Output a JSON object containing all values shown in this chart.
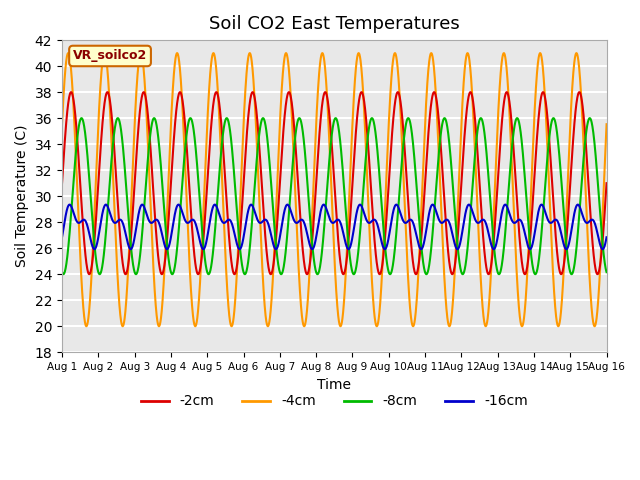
{
  "title": "Soil CO2 East Temperatures",
  "xlabel": "Time",
  "ylabel": "Soil Temperature (C)",
  "ylim": [
    18,
    42
  ],
  "yticks": [
    18,
    20,
    22,
    24,
    26,
    28,
    30,
    32,
    34,
    36,
    38,
    40,
    42
  ],
  "start_day": 1,
  "end_day": 16,
  "days": 15,
  "colors": [
    "#dd0000",
    "#ff9900",
    "#00bb00",
    "#0000cc"
  ],
  "labels": [
    "-2cm",
    "-4cm",
    "-8cm",
    "-16cm"
  ],
  "bg_color": "#e8e8e8",
  "fig_bg": "#ffffff",
  "grid_color": "#ffffff",
  "annotation_text": "VR_soilco2",
  "annotation_bg": "#ffffcc",
  "annotation_border": "#cc6600"
}
